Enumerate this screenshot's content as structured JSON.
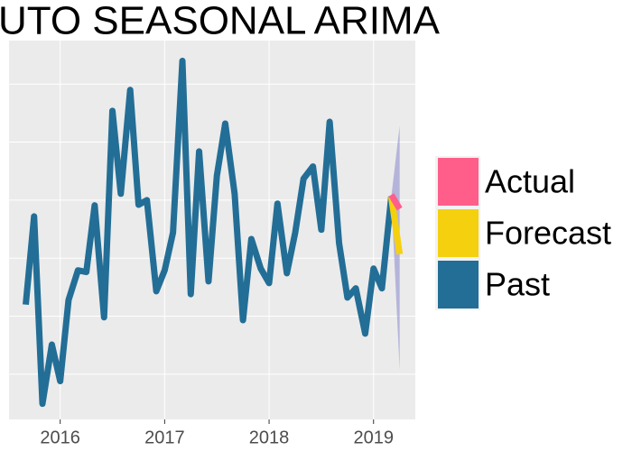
{
  "chart_data": {
    "type": "line",
    "title": "UTO SEASONAL ARIMA",
    "x": [
      2015.67,
      2015.75,
      2015.83,
      2015.92,
      2016.0,
      2016.08,
      2016.17,
      2016.25,
      2016.33,
      2016.42,
      2016.5,
      2016.58,
      2016.67,
      2016.75,
      2016.83,
      2016.92,
      2017.0,
      2017.08,
      2017.17,
      2017.25,
      2017.33,
      2017.42,
      2017.5,
      2017.58,
      2017.67,
      2017.75,
      2017.83,
      2017.92,
      2018.0,
      2018.08,
      2018.17,
      2018.25,
      2018.33,
      2018.42,
      2018.5,
      2018.58,
      2018.67,
      2018.75,
      2018.83,
      2018.92,
      2019.0,
      2019.08,
      2019.17
    ],
    "series": [
      {
        "name": "Actual",
        "color": "#ff5e8a",
        "x": [
          2019.17,
          2019.25
        ],
        "values": [
          4.09,
          3.85
        ]
      },
      {
        "name": "Forecast",
        "color": "#f5d00f",
        "x": [
          2019.17,
          2019.25
        ],
        "values": [
          4.06,
          3.07
        ]
      },
      {
        "name": "Past",
        "color": "#236e96",
        "values": [
          2.2,
          3.72,
          0.49,
          1.51,
          0.88,
          2.28,
          2.79,
          2.76,
          3.91,
          1.98,
          5.54,
          4.11,
          5.9,
          3.92,
          4.0,
          2.43,
          2.79,
          3.44,
          6.4,
          2.38,
          4.84,
          2.6,
          4.42,
          5.32,
          4.11,
          1.93,
          3.33,
          2.82,
          2.57,
          3.94,
          2.74,
          3.44,
          4.37,
          4.58,
          3.49,
          5.35,
          3.26,
          2.32,
          2.48,
          1.7,
          2.82,
          2.48,
          4.06
        ]
      }
    ],
    "interval": {
      "color": "#8f8fd0",
      "x": [
        2019.17,
        2019.25
      ],
      "lower": [
        4.06,
        1.08
      ],
      "upper": [
        4.06,
        5.28
      ]
    },
    "xlim": [
      2015.51,
      2019.4
    ],
    "xticks": [
      2016,
      2017,
      2018,
      2019
    ],
    "ylim": [
      0.22,
      6.75
    ],
    "ygrid": [
      1,
      2,
      3,
      4,
      5,
      6
    ],
    "grid": true
  }
}
